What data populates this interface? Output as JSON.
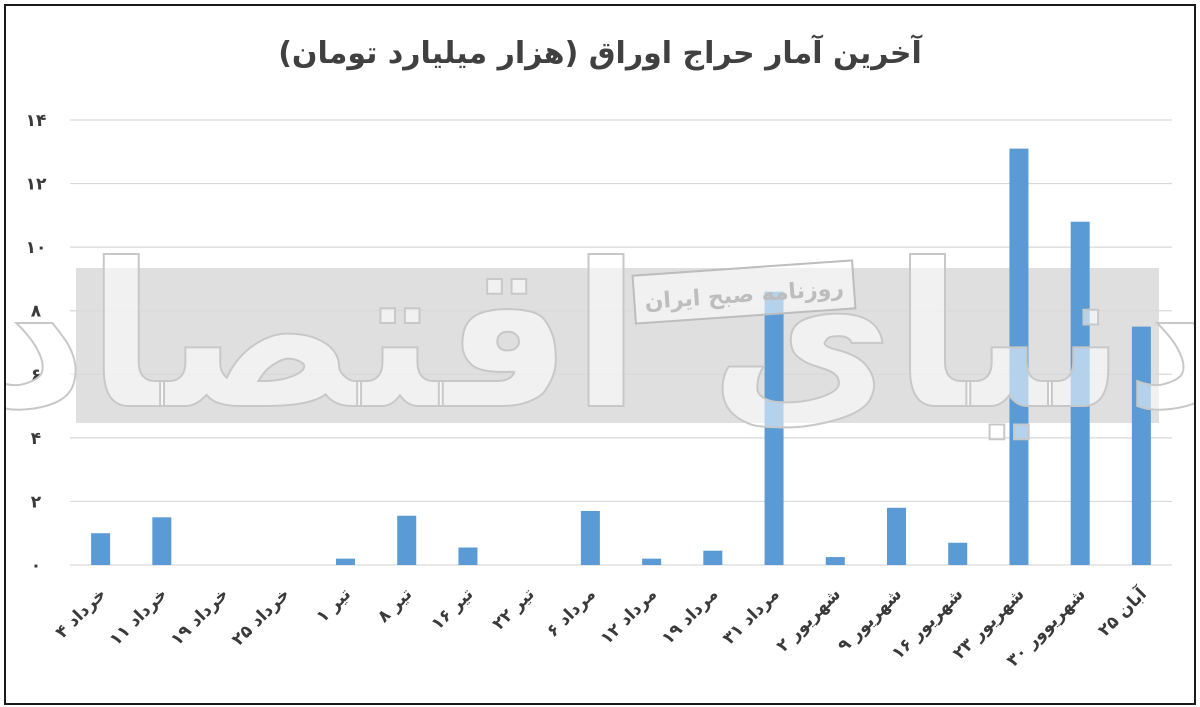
{
  "chart_data": {
    "type": "bar",
    "title": "آخرین آمار حراج اوراق (هزار میلیارد تومان)",
    "xlabel": "",
    "ylabel": "",
    "categories": [
      "۴ خرداد",
      "۱۱ خرداد",
      "۱۹ خرداد",
      "۲۵ خرداد",
      "۱ تیر",
      "۸ تیر",
      "۱۶ تیر",
      "۲۲ تیر",
      "۶ مرداد",
      "۱۲ مرداد",
      "۱۹ مرداد",
      "۳۱ مرداد",
      "۲ شهریور",
      "۹ شهریور",
      "۱۶ شهریور",
      "۲۳ شهریور",
      "۳۰ شهریوور",
      "۲۵ آبان"
    ],
    "values": [
      1.0,
      1.5,
      0,
      0,
      0.2,
      1.55,
      0.55,
      0,
      1.7,
      0.2,
      0.45,
      8.6,
      0.25,
      1.8,
      0.7,
      13.1,
      10.8,
      7.5
    ],
    "ylim": [
      0,
      14
    ],
    "ytick_values": [
      0,
      2,
      4,
      6,
      8,
      10,
      12,
      14
    ],
    "ytick_labels": [
      "۰",
      "۲",
      "۴",
      "۶",
      "۸",
      "۱۰",
      "۱۲",
      "۱۴"
    ],
    "grid": true,
    "bar_color": "#5b9bd5",
    "grid_color": "#d9d9d9"
  },
  "watermark": {
    "main_text": "دنیای اقتصاد",
    "sub_text": "روزنامه صبح ایران",
    "band_color": "#d9d9d9"
  }
}
